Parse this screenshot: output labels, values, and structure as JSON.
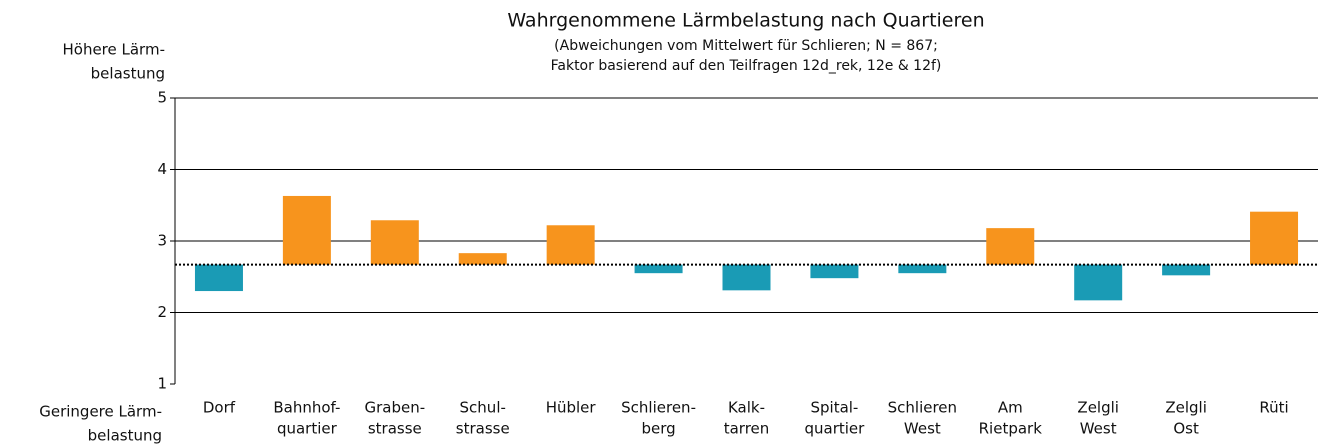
{
  "chart_data": {
    "type": "deviation_bar",
    "title": "Wahrgenommene Lärmbelastung nach Quartieren",
    "subtitle": [
      "(Abweichungen vom Mittelwert für Schlieren; N = 867;",
      "Faktor basierend auf den Teilfragen 12d_rek, 12e & 12f)"
    ],
    "y_top_label": [
      "Höhere Lärm-",
      "belastung"
    ],
    "y_bottom_label": [
      "Geringere Lärm-",
      "belastung"
    ],
    "categories": [
      [
        "Dorf"
      ],
      [
        "Bahnhof-",
        "quartier"
      ],
      [
        "Graben-",
        "strasse"
      ],
      [
        "Schul-",
        "strasse"
      ],
      [
        "Hübler"
      ],
      [
        "Schlieren-",
        "berg"
      ],
      [
        "Kalk-",
        "tarren"
      ],
      [
        "Spital-",
        "quartier"
      ],
      [
        "Schlieren",
        "West"
      ],
      [
        "Am",
        "Rietpark"
      ],
      [
        "Zelgli",
        "West"
      ],
      [
        "Zelgli",
        "Ost"
      ],
      [
        "Rüti"
      ]
    ],
    "values": [
      2.3,
      3.63,
      3.29,
      2.83,
      3.22,
      2.55,
      2.31,
      2.48,
      2.55,
      3.18,
      2.17,
      2.52,
      3.41
    ],
    "reference_line": 2.67,
    "colors": {
      "above": "#f7941d",
      "below": "#1a9bb5"
    },
    "ylim": [
      1,
      5
    ],
    "yticks": [
      1,
      2,
      3,
      4,
      5
    ],
    "grid": true
  }
}
